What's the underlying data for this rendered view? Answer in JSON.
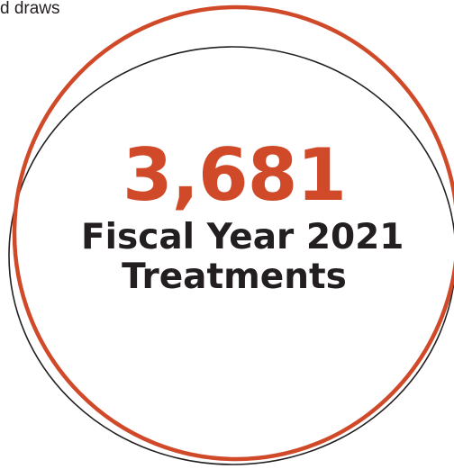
{
  "fragment": {
    "text": "d draws"
  },
  "stat": {
    "value": "3,681",
    "label_line1": "Fiscal Year 2021",
    "label_line2": "Treatments"
  },
  "colors": {
    "accent": "#d04a2a",
    "text": "#231f20",
    "outline": "#231f20"
  }
}
